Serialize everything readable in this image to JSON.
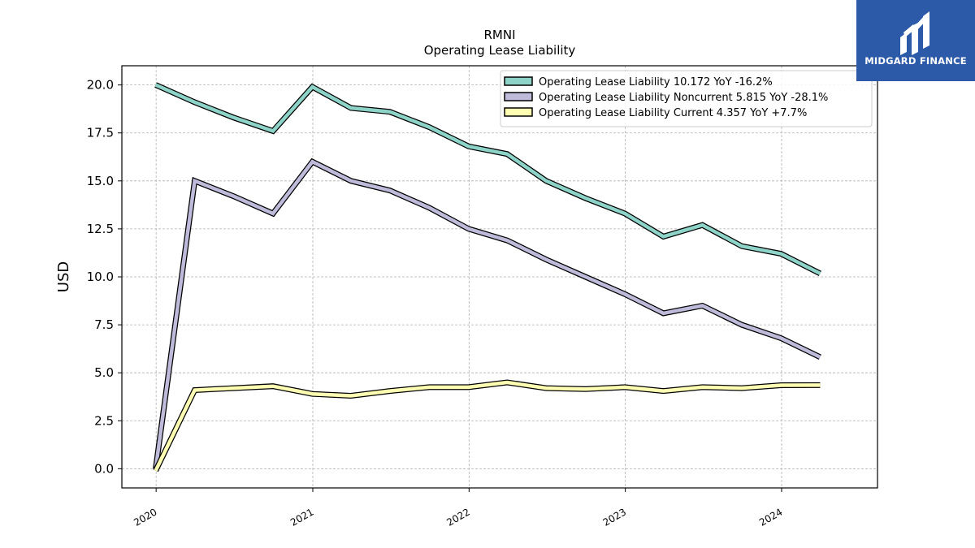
{
  "chart_data": {
    "type": "line",
    "title": "RMNI",
    "subtitle": "Operating Lease Liability",
    "ylabel": "USD",
    "xlabel": "",
    "ylim": [
      -1.0,
      21.0
    ],
    "yticks": [
      0.0,
      2.5,
      5.0,
      7.5,
      10.0,
      12.5,
      15.0,
      17.5,
      20.0
    ],
    "ytick_labels": [
      "0.0",
      "2.5",
      "5.0",
      "7.5",
      "10.0",
      "12.5",
      "15.0",
      "17.5",
      "20.0"
    ],
    "xlim": [
      "2019-10-13",
      "2024-08-12"
    ],
    "xticks": [
      "2020-01-01",
      "2021-01-01",
      "2022-01-01",
      "2023-01-01",
      "2024-01-01"
    ],
    "xtick_labels": [
      "2020",
      "2021",
      "2022",
      "2023",
      "2024"
    ],
    "x": [
      "2019-12-31",
      "2020-03-31",
      "2020-06-30",
      "2020-09-30",
      "2020-12-31",
      "2021-03-31",
      "2021-06-30",
      "2021-09-30",
      "2021-12-31",
      "2022-03-31",
      "2022-06-30",
      "2022-09-30",
      "2022-12-31",
      "2023-03-31",
      "2023-06-30",
      "2023-09-30",
      "2023-12-31",
      "2024-03-31"
    ],
    "grid": true,
    "legend_position": "top-right",
    "series": [
      {
        "name": "Operating Lease Liability",
        "legend_label": "Operating Lease Liability  10.172 YoY -16.2%",
        "color": "#8dd3c7",
        "values": [
          20.0,
          19.1,
          18.3,
          17.6,
          19.9,
          18.8,
          18.6,
          17.8,
          16.8,
          16.4,
          15.0,
          14.1,
          13.3,
          12.1,
          12.7,
          11.6,
          11.2,
          10.172
        ]
      },
      {
        "name": "Operating Lease Liability Noncurrent",
        "legend_label": "Operating Lease Liability Noncurrent  5.815 YoY -28.1%",
        "color": "#bebada",
        "values": [
          0.0,
          15.0,
          14.2,
          13.3,
          16.0,
          15.0,
          14.5,
          13.6,
          12.5,
          11.9,
          10.9,
          10.0,
          9.1,
          8.1,
          8.5,
          7.5,
          6.8,
          5.815
        ]
      },
      {
        "name": "Operating Lease Liability Current",
        "legend_label": "Operating Lease Liability Current  4.357 YoY +7.7%",
        "color": "#ffffb3",
        "values": [
          -0.1,
          4.1,
          4.2,
          4.3,
          3.9,
          3.8,
          4.05,
          4.25,
          4.25,
          4.5,
          4.2,
          4.15,
          4.25,
          4.05,
          4.25,
          4.2,
          4.35,
          4.357
        ]
      }
    ]
  },
  "logo": {
    "text": "MIDGARD FINANCE",
    "color": "#2c5aa8"
  }
}
